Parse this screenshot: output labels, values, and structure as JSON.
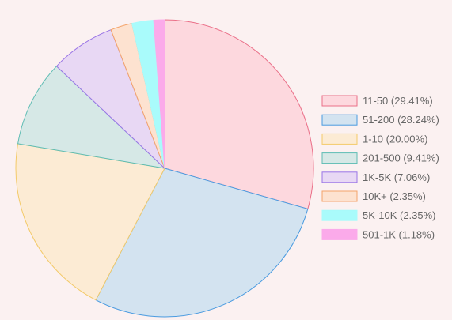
{
  "chart_data": {
    "type": "pie",
    "legend_position": "right",
    "slices": [
      {
        "label": "11-50",
        "percent_label": "29.41%",
        "value": 29.41,
        "fill": "#fdd8de",
        "stroke": "#ea6f88"
      },
      {
        "label": "51-200",
        "percent_label": "28.24%",
        "value": 28.24,
        "fill": "#d3e3f0",
        "stroke": "#4a9be0"
      },
      {
        "label": "1-10",
        "percent_label": "20.00%",
        "value": 20.0,
        "fill": "#fcebd4",
        "stroke": "#f3ca69"
      },
      {
        "label": "201-500",
        "percent_label": "9.41%",
        "value": 9.41,
        "fill": "#d6e8e6",
        "stroke": "#5dbcb3"
      },
      {
        "label": "1K-5K",
        "percent_label": "7.06%",
        "value": 7.06,
        "fill": "#e8d8f4",
        "stroke": "#9a75e6"
      },
      {
        "label": "10K+",
        "percent_label": "2.35%",
        "value": 2.35,
        "fill": "#fde2d0",
        "stroke": "#f4a46a"
      },
      {
        "label": "5K-10K",
        "percent_label": "2.35%",
        "value": 2.35,
        "fill": "#a9fbfb",
        "stroke": "#a9fbfb"
      },
      {
        "label": "501-1K",
        "percent_label": "1.18%",
        "value": 1.18,
        "fill": "#fbaaea",
        "stroke": "#fbaaea"
      }
    ]
  }
}
